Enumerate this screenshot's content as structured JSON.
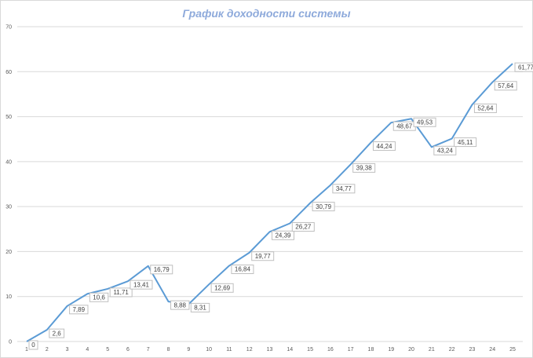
{
  "chart_data": {
    "type": "line",
    "title": "График доходности системы",
    "x": [
      1,
      2,
      3,
      4,
      5,
      6,
      7,
      8,
      9,
      10,
      11,
      12,
      13,
      14,
      15,
      16,
      17,
      18,
      19,
      20,
      21,
      22,
      23,
      24,
      25
    ],
    "series": [
      {
        "name": "",
        "values": [
          0,
          2.6,
          7.89,
          10.6,
          11.71,
          13.41,
          16.79,
          8.88,
          8.31,
          12.69,
          16.84,
          19.77,
          24.39,
          26.27,
          30.79,
          34.77,
          39.38,
          44.24,
          48.67,
          49.53,
          43.24,
          45.11,
          52.64,
          57.64,
          61.77
        ],
        "labels": [
          "0",
          "2,6",
          "7,89",
          "10,6",
          "11,71",
          "13,41",
          "16,79",
          "8,88",
          "8,31",
          "12,69",
          "16,84",
          "19,77",
          "24,39",
          "26,27",
          "30,79",
          "34,77",
          "39,38",
          "44,24",
          "48,67",
          "49,53",
          "43,24",
          "45,11",
          "52,64",
          "57,64",
          "61,77"
        ]
      }
    ],
    "y_ticks": [
      "0",
      "10",
      "20",
      "30",
      "40",
      "50",
      "60",
      "70"
    ],
    "x_ticks": [
      "1",
      "2",
      "3",
      "4",
      "5",
      "6",
      "7",
      "8",
      "9",
      "10",
      "11",
      "12",
      "13",
      "14",
      "15",
      "16",
      "17",
      "18",
      "19",
      "20",
      "21",
      "22",
      "23",
      "24",
      "25"
    ],
    "ylim": [
      0,
      70
    ],
    "grid": true,
    "line_color": "#5b9bd5",
    "title_color": "#8eaadb"
  }
}
